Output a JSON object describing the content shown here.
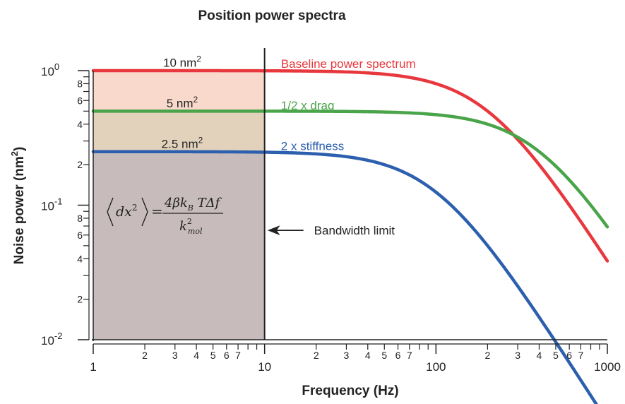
{
  "chart_data": {
    "type": "line",
    "title": "Position power spectra",
    "xlabel": "Frequency (Hz)",
    "ylabel_main": "Noise power (nm",
    "ylabel_sup": "2",
    "ylabel_tail": ")",
    "x_scale": "log",
    "y_scale": "log",
    "xlim": [
      1,
      1000
    ],
    "ylim": [
      0.01,
      1
    ],
    "x_major_ticks": [
      {
        "value": 1,
        "label": "1"
      },
      {
        "value": 10,
        "label": "10"
      },
      {
        "value": 100,
        "label": "100"
      },
      {
        "value": 1000,
        "label": "1000"
      }
    ],
    "x_minor_labels": [
      "2",
      "3",
      "4",
      "5",
      "6",
      "7"
    ],
    "y_major_ticks": [
      {
        "value": 1,
        "base": "10",
        "exp": "0"
      },
      {
        "value": 0.1,
        "base": "10",
        "exp": "-1"
      },
      {
        "value": 0.01,
        "base": "10",
        "exp": "-2"
      }
    ],
    "y_minor_labels": [
      "2",
      "4",
      "6",
      "8"
    ],
    "series": [
      {
        "name": "Baseline power spectrum",
        "color": "#e8383d",
        "plateau": 1.0,
        "corner_hz": 200,
        "label_x": 10.7,
        "label_y": 1.1
      },
      {
        "name": "1/2 x drag",
        "color": "#4aa44a",
        "plateau": 0.5,
        "corner_hz": 400,
        "label_x": 10.7,
        "label_y": 0.54
      },
      {
        "name": "2 x stiffness",
        "color": "#2c5fae",
        "plateau": 0.25,
        "corner_hz": 100,
        "label_x": 10.7,
        "label_y": 0.27
      }
    ],
    "shaded_regions": [
      {
        "label_main": "10 nm",
        "label_sup": "2",
        "y_top": 1.0,
        "y_bottom": 0.5,
        "color": "#f8d9cc",
        "label_y": 1.12
      },
      {
        "label_main": "5 nm",
        "label_sup": "2",
        "y_top": 0.5,
        "y_bottom": 0.25,
        "color": "#e2d2bc",
        "label_y": 0.56
      },
      {
        "label_main": "2.5 nm",
        "label_sup": "2",
        "y_top": 0.25,
        "y_bottom": 0.01,
        "color": "#c7bcbb",
        "label_y": 0.28
      }
    ],
    "bandwidth_limit": {
      "x": 10,
      "label": "Bandwidth limit",
      "arrow_y": 0.065
    },
    "formula": {
      "lhs": "dx",
      "lhs_sup": "2",
      "equals": "=",
      "numerator": "4βk",
      "numerator_sub": "B",
      "numerator_tail": "TΔf",
      "denominator": "k",
      "denominator_sup": "2",
      "denominator_sub": "mol"
    }
  }
}
